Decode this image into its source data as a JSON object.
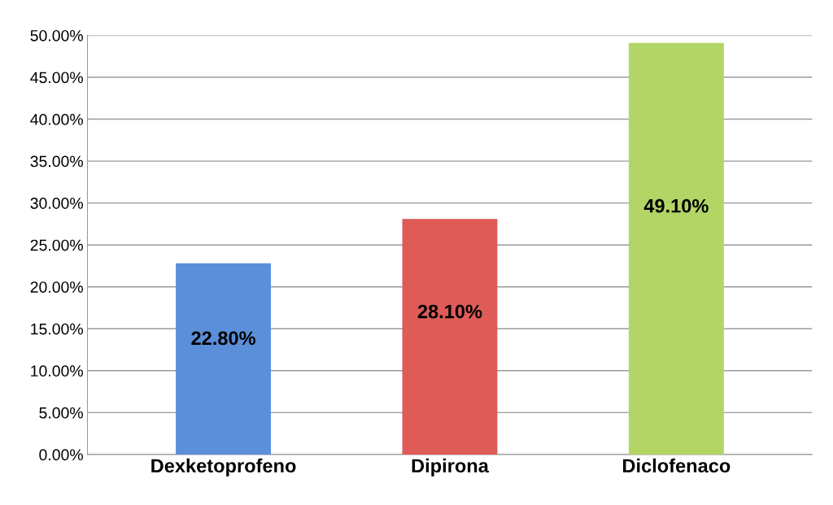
{
  "chart_data": {
    "type": "bar",
    "categories": [
      "Dexketoprofeno",
      "Dipirona",
      "Diclofenaco"
    ],
    "values": [
      22.8,
      28.1,
      49.1
    ],
    "colors": [
      "#5b8fd9",
      "#de5b58",
      "#b3d565"
    ],
    "value_labels": [
      "22.80%",
      "28.10%",
      "49.10%"
    ],
    "ylim": [
      0,
      50
    ],
    "yticks": [
      {
        "value": 0,
        "label": "0.00%"
      },
      {
        "value": 5,
        "label": "5.00%"
      },
      {
        "value": 10,
        "label": "10.00%"
      },
      {
        "value": 15,
        "label": "15.00%"
      },
      {
        "value": 20,
        "label": "20.00%"
      },
      {
        "value": 25,
        "label": "25.00%"
      },
      {
        "value": 30,
        "label": "30.00%"
      },
      {
        "value": 35,
        "label": "35.00%"
      },
      {
        "value": 40,
        "label": "40.00%"
      },
      {
        "value": 45,
        "label": "45.00%"
      },
      {
        "value": 50,
        "label": "50.00%"
      }
    ],
    "grid": "y",
    "legend": false
  }
}
